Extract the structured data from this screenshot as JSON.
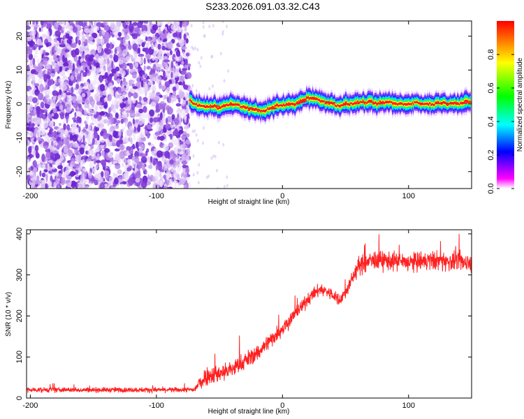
{
  "title": "S233.2026.091.03.32.C43",
  "chart_data": [
    {
      "type": "heatmap",
      "xlabel": "Height of straight line (km)",
      "ylabel": "Frequency (Hz)",
      "xlim": [
        -203,
        150
      ],
      "ylim": [
        -25,
        24.5
      ],
      "xticks": [
        -200,
        -100,
        0,
        100
      ],
      "yticks": [
        -20,
        -10,
        0,
        10,
        20
      ],
      "noise_region_x": [
        -203,
        -74
      ],
      "onset_x": -74,
      "ridge": {
        "x": [
          -74,
          -70,
          -65,
          -60,
          -55,
          -50,
          -45,
          -40,
          -35,
          -30,
          -25,
          -20,
          -15,
          -10,
          -5,
          0,
          5,
          10,
          15,
          20,
          25,
          30,
          35,
          40,
          45,
          50,
          55,
          60,
          65,
          70,
          75,
          80,
          85,
          90,
          95,
          100,
          105,
          110,
          115,
          120,
          125,
          130,
          135,
          140,
          145,
          150
        ],
        "y": [
          1.0,
          0.0,
          -0.5,
          -1.0,
          -0.5,
          -1.0,
          -0.5,
          0.0,
          -0.5,
          -1.0,
          -1.5,
          -2.0,
          -2.0,
          -1.5,
          -0.5,
          -0.5,
          0.0,
          0.0,
          1.0,
          2.0,
          1.5,
          1.0,
          0.5,
          0.0,
          -0.5,
          0.0,
          0.0,
          0.5,
          0.5,
          0.5,
          0.0,
          0.5,
          0.5,
          0.0,
          0.0,
          0.0,
          0.5,
          0.0,
          0.0,
          0.0,
          0.5,
          0.0,
          0.5,
          0.0,
          0.5,
          0.5
        ]
      },
      "colorbar": {
        "label": "Normalized spectral amplitude",
        "range": [
          0,
          1
        ],
        "ticks": [
          "0.0",
          "0.2",
          "0.4",
          "0.6",
          "0.8"
        ],
        "colors": [
          "#ffffff",
          "#ff00ff",
          "#0000ff",
          "#00ffff",
          "#00ff00",
          "#ffff00",
          "#ff0000"
        ]
      }
    },
    {
      "type": "line",
      "xlabel": "Height of straight line (km)",
      "ylabel": "SNR (10 * v/v)",
      "xlim": [
        -203,
        150
      ],
      "ylim": [
        0,
        410
      ],
      "xticks": [
        -200,
        -100,
        0,
        100
      ],
      "yticks": [
        0,
        100,
        200,
        300,
        400
      ],
      "color": "#ff2020",
      "trend": {
        "x": [
          -203,
          -160,
          -120,
          -80,
          -70,
          -65,
          -60,
          -50,
          -40,
          -30,
          -20,
          -10,
          0,
          10,
          20,
          25,
          30,
          35,
          40,
          45,
          50,
          55,
          60,
          70,
          80,
          100,
          120,
          150
        ],
        "y": [
          20,
          20,
          20,
          20,
          20,
          40,
          55,
          60,
          70,
          90,
          110,
          140,
          170,
          205,
          240,
          255,
          265,
          260,
          250,
          240,
          255,
          290,
          320,
          335,
          335,
          330,
          335,
          330
        ]
      },
      "noise_amplitude": {
        "x": [
          -203,
          -70,
          -65,
          0,
          20,
          55,
          60,
          150
        ],
        "y": [
          8,
          8,
          30,
          25,
          20,
          20,
          30,
          30
        ]
      }
    }
  ]
}
